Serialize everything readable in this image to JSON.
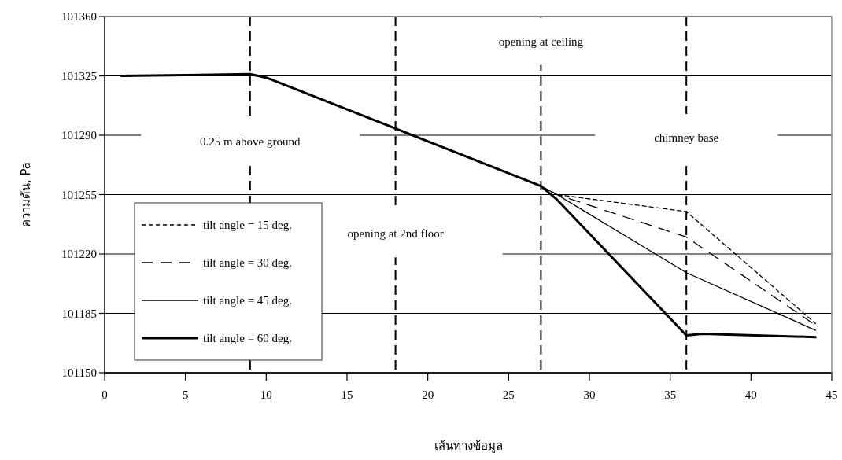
{
  "chart_data": {
    "type": "line",
    "xlabel": "เส้นทางข้อมูล",
    "ylabel": "ความดัน, Pa",
    "xlim": [
      0,
      45
    ],
    "xticks": [
      0,
      5,
      10,
      15,
      20,
      25,
      30,
      35,
      40,
      45
    ],
    "ylim": [
      101150,
      101360
    ],
    "yticks": [
      101150,
      101185,
      101220,
      101255,
      101290,
      101325,
      101360
    ],
    "grid": "y",
    "legend": "bottom left",
    "marker": "none",
    "series": [
      {
        "name": "tilt angle = 15 deg.",
        "color": "#000000",
        "line_style": "dotted",
        "x": [
          1,
          9,
          10,
          18,
          27,
          28,
          36,
          44
        ],
        "values": [
          101325,
          101326,
          101324,
          101294,
          101260,
          101255,
          101245,
          101179
        ]
      },
      {
        "name": "tilt angle = 30 deg.",
        "color": "#000000",
        "line_style": "dashed",
        "x": [
          1,
          9,
          10,
          18,
          27,
          28,
          36,
          44
        ],
        "values": [
          101325,
          101326,
          101324,
          101294,
          101260,
          101255,
          101230,
          101178
        ]
      },
      {
        "name": "tilt angle = 45 deg.",
        "color": "#000000",
        "line_style": "solid",
        "x": [
          1,
          9,
          10,
          18,
          27,
          28,
          36,
          44
        ],
        "values": [
          101325,
          101326,
          101324,
          101294,
          101260,
          101255,
          101209,
          101175
        ]
      },
      {
        "name": "tilt angle = 60 deg.",
        "color": "#000000",
        "line_style": "solid",
        "x": [
          1,
          9,
          10,
          18,
          27,
          28,
          36,
          37,
          44
        ],
        "values": [
          101325,
          101326,
          101324,
          101294,
          101260,
          101252,
          101172,
          101173,
          101171
        ]
      }
    ],
    "ref_lines": [
      {
        "axis": "x",
        "value": 9,
        "label": "0.25 m above ground",
        "color": "#000000",
        "line_style": "dashed"
      },
      {
        "axis": "x",
        "value": 18,
        "label": "opening at 2nd floor",
        "color": "#000000",
        "line_style": "dashed"
      },
      {
        "axis": "x",
        "value": 27,
        "label": "opening at ceiling",
        "color": "#000000",
        "line_style": "dashed"
      },
      {
        "axis": "x",
        "value": 36,
        "label": "chimney base",
        "color": "#000000",
        "line_style": "dashed"
      }
    ]
  }
}
